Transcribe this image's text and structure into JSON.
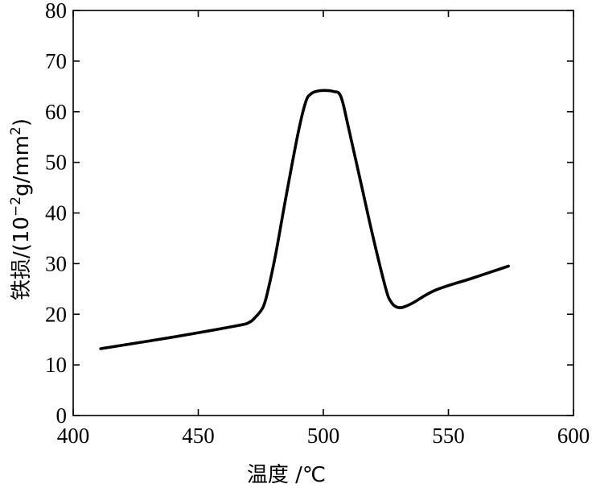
{
  "chart_data": {
    "type": "line",
    "title": "",
    "xlabel": "温度 /℃",
    "ylabel": {
      "prefix": "铁损/(10",
      "sup1": "−2",
      "middle": "g/mm",
      "sup2": "2",
      "suffix": ")"
    },
    "xlim": [
      400,
      600
    ],
    "ylim": [
      0,
      80
    ],
    "xticks": [
      "400",
      "450",
      "500",
      "550",
      "600"
    ],
    "yticks": [
      "0",
      "10",
      "20",
      "30",
      "40",
      "50",
      "60",
      "70",
      "80"
    ],
    "grid": false,
    "legend": "none",
    "series": [
      {
        "x": [
          411,
          440,
          465,
          470,
          473,
          476,
          478,
          481,
          485,
          490,
          493,
          495,
          497,
          500,
          504,
          507,
          510,
          515,
          520,
          525,
          527,
          529,
          531,
          533,
          536,
          545,
          560,
          574
        ],
        "y": [
          13.2,
          15.5,
          17.7,
          18.3,
          19.5,
          21.5,
          25,
          32,
          43,
          56,
          62,
          63.5,
          64,
          64.2,
          64,
          63,
          57,
          46,
          35,
          25,
          22.5,
          21.5,
          21.3,
          21.6,
          22.3,
          24.8,
          27.2,
          29.5
        ]
      }
    ]
  }
}
